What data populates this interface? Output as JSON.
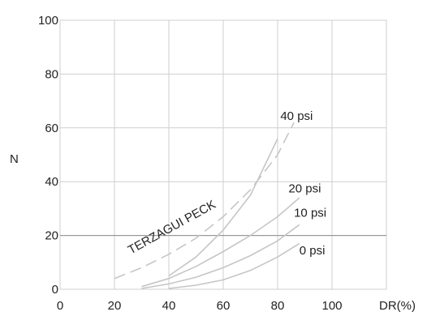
{
  "chart_data": {
    "type": "line",
    "title": "",
    "xlabel": "DR(%)",
    "ylabel": "N",
    "xlim": [
      0,
      120
    ],
    "ylim": [
      0,
      100
    ],
    "x_ticks": [
      0,
      20,
      40,
      60,
      80,
      100
    ],
    "y_ticks": [
      0,
      20,
      40,
      60,
      80,
      100
    ],
    "grid": true,
    "series": [
      {
        "name": "0 psi",
        "style": "solid",
        "x": [
          40,
          50,
          60,
          70,
          80,
          88
        ],
        "y": [
          0.3,
          1.5,
          3.5,
          7,
          12,
          17
        ]
      },
      {
        "name": "10 psi",
        "style": "solid",
        "x": [
          30,
          40,
          50,
          60,
          70,
          80,
          88
        ],
        "y": [
          0.3,
          2,
          4.5,
          8,
          12.5,
          18,
          24
        ]
      },
      {
        "name": "20 psi",
        "style": "solid",
        "x": [
          30,
          40,
          50,
          60,
          70,
          80,
          88
        ],
        "y": [
          1,
          4,
          8.5,
          14,
          20,
          27,
          34
        ]
      },
      {
        "name": "40 psi",
        "style": "solid",
        "x": [
          40,
          50,
          60,
          70,
          80
        ],
        "y": [
          5,
          12,
          22,
          35,
          56
        ]
      },
      {
        "name": "TERZAGUI PECK",
        "style": "dashed",
        "x": [
          20,
          30,
          40,
          50,
          60,
          70,
          80,
          86
        ],
        "y": [
          4,
          8,
          13,
          19,
          27,
          37,
          50,
          62
        ]
      }
    ],
    "annotations": [
      {
        "text": "40 psi",
        "x": 81,
        "y": 63
      },
      {
        "text": "20 psi",
        "x": 84,
        "y": 36
      },
      {
        "text": "10 psi",
        "x": 86,
        "y": 27
      },
      {
        "text": "0 psi",
        "x": 88,
        "y": 13
      },
      {
        "text": "TERZAGUI PECK",
        "x": 26,
        "y": 13
      }
    ]
  }
}
